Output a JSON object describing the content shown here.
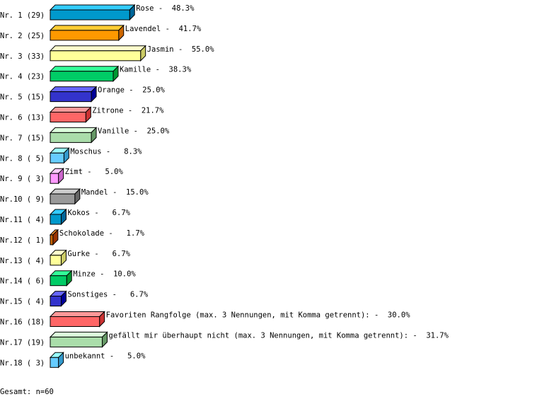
{
  "chart_data": {
    "type": "bar",
    "orientation": "horizontal",
    "style": "3d",
    "categories": [
      "Rose",
      "Lavendel",
      "Jasmin",
      "Kamille",
      "Orange",
      "Zitrone",
      "Vanille",
      "Moschus",
      "Zimt",
      "Mandel",
      "Kokos",
      "Schokolade",
      "Gurke",
      "Minze",
      "Sonstiges",
      "Favoriten Rangfolge (max. 3 Nennungen, mit Komma getrennt):",
      "gefällt mir überhaupt nicht (max. 3 Nennungen, mit Komma getrennt):",
      "unbekannt"
    ],
    "row_labels": [
      "Nr. 1 (29)",
      "Nr. 2 (25)",
      "Nr. 3 (33)",
      "Nr. 4 (23)",
      "Nr. 5 (15)",
      "Nr. 6 (13)",
      "Nr. 7 (15)",
      "Nr. 8 ( 5)",
      "Nr. 9 ( 3)",
      "Nr.10 ( 9)",
      "Nr.11 ( 4)",
      "Nr.12 ( 1)",
      "Nr.13 ( 4)",
      "Nr.14 ( 6)",
      "Nr.15 ( 4)",
      "Nr.16 (18)",
      "Nr.17 (19)",
      "Nr.18 ( 3)"
    ],
    "counts": [
      29,
      25,
      33,
      23,
      15,
      13,
      15,
      5,
      3,
      9,
      4,
      1,
      4,
      6,
      4,
      18,
      19,
      3
    ],
    "percent_labels": [
      "48.3%",
      "41.7%",
      "55.0%",
      "38.3%",
      "25.0%",
      "21.7%",
      "25.0%",
      "8.3%",
      "5.0%",
      "15.0%",
      "6.7%",
      "1.7%",
      "6.7%",
      "10.0%",
      "6.7%",
      "30.0%",
      "31.7%",
      "5.0%"
    ],
    "colors": [
      [
        "#0099cc",
        "#33ccff",
        "#006699"
      ],
      [
        "#ff9900",
        "#ffcc33",
        "#cc6600"
      ],
      [
        "#ffff99",
        "#ffffcc",
        "#cccc66"
      ],
      [
        "#00cc66",
        "#33ff99",
        "#009933"
      ],
      [
        "#3333cc",
        "#6666ff",
        "#000099"
      ],
      [
        "#ff6666",
        "#ff9999",
        "#cc3333"
      ],
      [
        "#aaddaa",
        "#ddffdd",
        "#669966"
      ],
      [
        "#66ccff",
        "#99ffff",
        "#3399cc"
      ],
      [
        "#ff99ff",
        "#ffccff",
        "#cc66cc"
      ],
      [
        "#999999",
        "#cccccc",
        "#666666"
      ],
      [
        "#0099cc",
        "#33ccff",
        "#006699"
      ],
      [
        "#cc6600",
        "#ff9933",
        "#993300"
      ],
      [
        "#ffff99",
        "#ffffcc",
        "#cccc66"
      ],
      [
        "#00cc66",
        "#33ff99",
        "#009933"
      ],
      [
        "#3333cc",
        "#6666ff",
        "#000099"
      ],
      [
        "#ff6666",
        "#ff9999",
        "#cc3333"
      ],
      [
        "#aaddaa",
        "#ddffdd",
        "#669966"
      ],
      [
        "#66ccff",
        "#99ffff",
        "#3399cc"
      ]
    ],
    "total_label": "Gesamt: n=60"
  }
}
